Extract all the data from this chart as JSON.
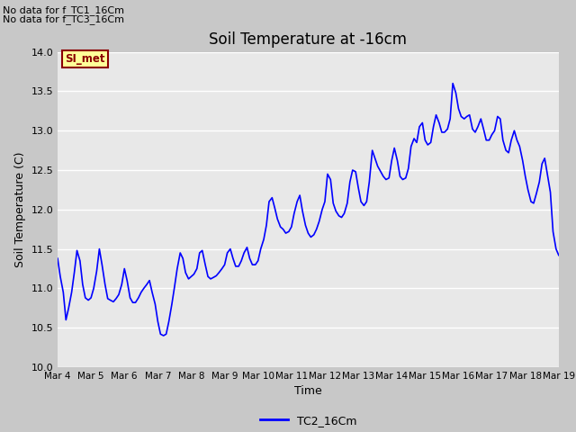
{
  "title": "Soil Temperature at -16cm",
  "xlabel": "Time",
  "ylabel": "Soil Temperature (C)",
  "ylim": [
    10.0,
    14.0
  ],
  "yticks": [
    10.0,
    10.5,
    11.0,
    11.5,
    12.0,
    12.5,
    13.0,
    13.5,
    14.0
  ],
  "line_color": "blue",
  "line_label": "TC2_16Cm",
  "fig_bg_color": "#c8c8c8",
  "plot_bg_color": "#e8e8e8",
  "no_data_texts": [
    "No data for f_TC1_16Cm",
    "No data for f_TC3_16Cm"
  ],
  "legend_label": "SI_met",
  "legend_text_color": "#8b0000",
  "legend_box_facecolor": "#ffff99",
  "legend_box_edgecolor": "#8b0000",
  "xtick_positions": [
    0,
    1,
    2,
    3,
    4,
    5,
    6,
    7,
    8,
    9,
    10,
    11,
    12,
    13,
    14,
    15
  ],
  "xtick_labels": [
    "Mar 4",
    "Mar 5",
    "Mar 6",
    "Mar 7",
    "Mar 8",
    "Mar 9",
    "Mar 10",
    "Mar 11",
    "Mar 12",
    "Mar 13",
    "Mar 14",
    "Mar 15",
    "Mar 16",
    "Mar 17",
    "Mar 18",
    "Mar 19"
  ],
  "x_values": [
    0.0,
    0.08,
    0.17,
    0.25,
    0.33,
    0.42,
    0.5,
    0.58,
    0.67,
    0.75,
    0.83,
    0.92,
    1.0,
    1.08,
    1.17,
    1.25,
    1.33,
    1.42,
    1.5,
    1.58,
    1.67,
    1.75,
    1.83,
    1.92,
    2.0,
    2.08,
    2.17,
    2.25,
    2.33,
    2.42,
    2.5,
    2.58,
    2.67,
    2.75,
    2.83,
    2.92,
    3.0,
    3.08,
    3.17,
    3.25,
    3.33,
    3.42,
    3.5,
    3.58,
    3.67,
    3.75,
    3.83,
    3.92,
    4.0,
    4.08,
    4.17,
    4.25,
    4.33,
    4.42,
    4.5,
    4.58,
    4.67,
    4.75,
    4.83,
    4.92,
    5.0,
    5.08,
    5.17,
    5.25,
    5.33,
    5.42,
    5.5,
    5.58,
    5.67,
    5.75,
    5.83,
    5.92,
    6.0,
    6.08,
    6.17,
    6.25,
    6.33,
    6.42,
    6.5,
    6.58,
    6.67,
    6.75,
    6.83,
    6.92,
    7.0,
    7.08,
    7.17,
    7.25,
    7.33,
    7.42,
    7.5,
    7.58,
    7.67,
    7.75,
    7.83,
    7.92,
    8.0,
    8.08,
    8.17,
    8.25,
    8.33,
    8.42,
    8.5,
    8.58,
    8.67,
    8.75,
    8.83,
    8.92,
    9.0,
    9.08,
    9.17,
    9.25,
    9.33,
    9.42,
    9.5,
    9.58,
    9.67,
    9.75,
    9.83,
    9.92,
    10.0,
    10.08,
    10.17,
    10.25,
    10.33,
    10.42,
    10.5,
    10.58,
    10.67,
    10.75,
    10.83,
    10.92,
    11.0,
    11.08,
    11.17,
    11.25,
    11.33,
    11.42,
    11.5,
    11.58,
    11.67,
    11.75,
    11.83,
    11.92,
    12.0,
    12.08,
    12.17,
    12.25,
    12.33,
    12.42,
    12.5,
    12.58,
    12.67,
    12.75,
    12.83,
    12.92,
    13.0,
    13.08,
    13.17,
    13.25,
    13.33,
    13.42,
    13.5,
    13.58,
    13.67,
    13.75,
    13.83,
    13.92,
    14.0,
    14.08,
    14.17,
    14.25,
    14.33,
    14.42,
    14.5,
    14.58,
    14.67,
    14.75,
    14.83,
    14.92,
    15.0
  ],
  "y_values": [
    11.38,
    11.15,
    10.95,
    10.6,
    10.75,
    10.95,
    11.2,
    11.48,
    11.35,
    11.05,
    10.88,
    10.85,
    10.88,
    11.0,
    11.22,
    11.5,
    11.3,
    11.05,
    10.87,
    10.85,
    10.83,
    10.87,
    10.92,
    11.05,
    11.25,
    11.1,
    10.88,
    10.82,
    10.82,
    10.88,
    10.95,
    11.0,
    11.05,
    11.1,
    10.95,
    10.8,
    10.58,
    10.42,
    10.4,
    10.42,
    10.58,
    10.8,
    11.02,
    11.25,
    11.45,
    11.38,
    11.2,
    11.12,
    11.15,
    11.18,
    11.25,
    11.45,
    11.48,
    11.3,
    11.15,
    11.12,
    11.14,
    11.16,
    11.2,
    11.25,
    11.3,
    11.45,
    11.5,
    11.38,
    11.28,
    11.28,
    11.35,
    11.45,
    11.52,
    11.38,
    11.3,
    11.3,
    11.35,
    11.5,
    11.62,
    11.8,
    12.1,
    12.15,
    12.02,
    11.88,
    11.78,
    11.75,
    11.7,
    11.72,
    11.78,
    11.95,
    12.1,
    12.18,
    11.98,
    11.8,
    11.7,
    11.65,
    11.68,
    11.75,
    11.85,
    12.0,
    12.1,
    12.45,
    12.38,
    12.08,
    11.98,
    11.92,
    11.9,
    11.95,
    12.08,
    12.35,
    12.5,
    12.48,
    12.28,
    12.1,
    12.05,
    12.1,
    12.35,
    12.75,
    12.65,
    12.55,
    12.48,
    12.42,
    12.38,
    12.4,
    12.62,
    12.78,
    12.62,
    12.42,
    12.38,
    12.4,
    12.52,
    12.8,
    12.9,
    12.85,
    13.05,
    13.1,
    12.88,
    12.82,
    12.85,
    13.05,
    13.2,
    13.1,
    12.98,
    12.98,
    13.02,
    13.15,
    13.6,
    13.48,
    13.28,
    13.18,
    13.15,
    13.18,
    13.2,
    13.02,
    12.98,
    13.05,
    13.15,
    13.02,
    12.88,
    12.88,
    12.95,
    13.0,
    13.18,
    13.15,
    12.88,
    12.75,
    12.72,
    12.88,
    13.0,
    12.88,
    12.8,
    12.62,
    12.42,
    12.25,
    12.1,
    12.08,
    12.2,
    12.35,
    12.58,
    12.65,
    12.42,
    12.22,
    11.72,
    11.5,
    11.42
  ]
}
